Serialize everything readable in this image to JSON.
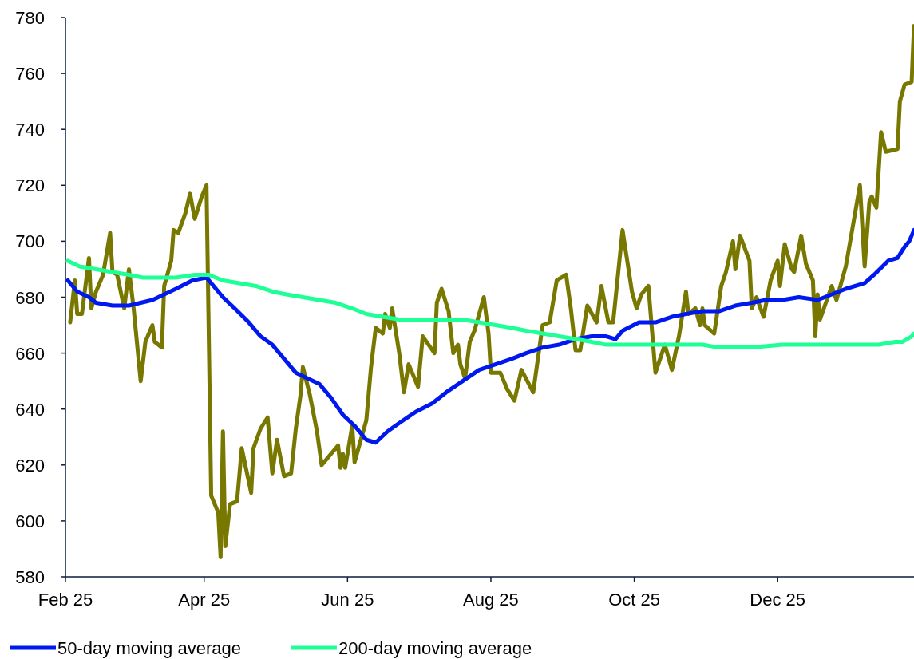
{
  "chart_data": {
    "type": "line",
    "xlim": [
      "2025-02-01",
      "2026-01-28"
    ],
    "xticks": [
      {
        "value": "2025-02-01",
        "label": "Feb 25"
      },
      {
        "value": "2025-04-01",
        "label": "Apr 25"
      },
      {
        "value": "2025-06-01",
        "label": "Jun 25"
      },
      {
        "value": "2025-08-01",
        "label": "Aug 25"
      },
      {
        "value": "2025-10-01",
        "label": "Oct 25"
      },
      {
        "value": "2025-12-01",
        "label": "Dec 25"
      }
    ],
    "ylim": [
      580,
      780
    ],
    "yticks": [
      580,
      600,
      620,
      640,
      660,
      680,
      700,
      720,
      740,
      760,
      780
    ],
    "grid": false,
    "legend": "bottom",
    "line_style": "solid",
    "marker": "none",
    "series": [
      {
        "color": "#787800",
        "x": [
          "2025-02-03",
          "2025-02-05",
          "2025-02-06",
          "2025-02-08",
          "2025-02-11",
          "2025-02-12",
          "2025-02-14",
          "2025-02-17",
          "2025-02-20",
          "2025-02-21",
          "2025-02-23",
          "2025-02-26",
          "2025-02-28",
          "2025-03-02",
          "2025-03-05",
          "2025-03-07",
          "2025-03-10",
          "2025-03-11",
          "2025-03-14",
          "2025-03-15",
          "2025-03-18",
          "2025-03-19",
          "2025-03-21",
          "2025-03-24",
          "2025-03-26",
          "2025-03-28",
          "2025-03-31",
          "2025-04-02",
          "2025-04-04",
          "2025-04-07",
          "2025-04-08",
          "2025-04-09",
          "2025-04-10",
          "2025-04-12",
          "2025-04-15",
          "2025-04-17",
          "2025-04-21",
          "2025-04-22",
          "2025-04-25",
          "2025-04-28",
          "2025-04-30",
          "2025-05-02",
          "2025-05-05",
          "2025-05-08",
          "2025-05-10",
          "2025-05-12",
          "2025-05-13",
          "2025-05-16",
          "2025-05-19",
          "2025-05-21",
          "2025-05-28",
          "2025-05-29",
          "2025-05-30",
          "2025-05-31",
          "2025-06-03",
          "2025-06-04",
          "2025-06-09",
          "2025-06-11",
          "2025-06-13",
          "2025-06-16",
          "2025-06-17",
          "2025-06-19",
          "2025-06-20",
          "2025-06-23",
          "2025-06-25",
          "2025-06-27",
          "2025-07-01",
          "2025-07-03",
          "2025-07-08",
          "2025-07-09",
          "2025-07-11",
          "2025-07-14",
          "2025-07-16",
          "2025-07-18",
          "2025-07-19",
          "2025-07-21",
          "2025-07-23",
          "2025-07-25",
          "2025-07-29",
          "2025-07-31",
          "2025-08-01",
          "2025-08-05",
          "2025-08-08",
          "2025-08-11",
          "2025-08-14",
          "2025-08-19",
          "2025-08-23",
          "2025-08-26",
          "2025-08-29",
          "2025-09-02",
          "2025-09-04",
          "2025-09-06",
          "2025-09-08",
          "2025-09-11",
          "2025-09-15",
          "2025-09-17",
          "2025-09-20",
          "2025-09-22",
          "2025-09-26",
          "2025-09-30",
          "2025-10-02",
          "2025-10-04",
          "2025-10-07",
          "2025-10-10",
          "2025-10-14",
          "2025-10-17",
          "2025-10-20",
          "2025-10-23",
          "2025-10-24",
          "2025-10-27",
          "2025-10-29",
          "2025-10-30",
          "2025-10-31",
          "2025-11-04",
          "2025-11-07",
          "2025-11-09",
          "2025-11-12",
          "2025-11-13",
          "2025-11-15",
          "2025-11-19",
          "2025-11-20",
          "2025-11-22",
          "2025-11-25",
          "2025-11-28",
          "2025-12-01",
          "2025-12-02",
          "2025-12-04",
          "2025-12-07",
          "2025-12-08",
          "2025-12-11",
          "2025-12-13",
          "2025-12-16",
          "2025-12-17",
          "2025-12-18",
          "2025-12-19",
          "2025-12-24",
          "2025-12-26",
          "2025-12-30",
          "2026-01-05",
          "2026-01-07",
          "2026-01-09",
          "2026-01-10",
          "2026-01-12",
          "2026-01-14",
          "2026-01-16",
          "2026-01-21",
          "2026-01-22",
          "2026-01-23",
          "2026-01-24",
          "2026-01-27",
          "2026-01-28"
        ],
        "values": [
          671,
          686,
          674,
          674,
          694,
          676,
          682,
          688,
          703,
          689,
          688,
          676,
          690,
          676,
          650,
          664,
          670,
          664,
          662,
          684,
          693,
          704,
          703,
          710,
          717,
          708,
          716,
          720,
          609,
          603,
          587,
          632,
          591,
          606,
          607,
          626,
          610,
          626,
          633,
          637,
          617,
          629,
          616,
          617,
          633,
          645,
          655,
          645,
          632,
          620,
          627,
          619,
          624,
          619,
          634,
          621,
          636,
          655,
          669,
          667,
          674,
          669,
          676,
          660,
          646,
          656,
          648,
          666,
          660,
          678,
          683,
          675,
          660,
          663,
          656,
          651,
          664,
          668,
          680,
          667,
          653,
          653,
          647,
          643,
          654,
          646,
          670,
          671,
          686,
          688,
          676,
          661,
          661,
          677,
          671,
          684,
          671,
          671,
          704,
          682,
          676,
          681,
          684,
          653,
          663,
          654,
          666,
          682,
          674,
          676,
          670,
          676,
          670,
          667,
          684,
          689,
          700,
          690,
          702,
          693,
          676,
          680,
          673,
          686,
          693,
          684,
          699,
          690,
          689,
          702,
          692,
          686,
          666,
          681,
          672,
          684,
          679,
          691,
          720,
          691,
          714,
          716,
          712,
          739,
          732,
          733,
          750,
          753,
          756,
          757,
          777
        ]
      },
      {
        "name": "50-day moving average",
        "color": "#0018f0",
        "x": [
          "2025-02-02",
          "2025-02-06",
          "2025-02-11",
          "2025-02-14",
          "2025-02-21",
          "2025-02-28",
          "2025-03-05",
          "2025-03-10",
          "2025-03-15",
          "2025-03-20",
          "2025-03-27",
          "2025-04-02",
          "2025-04-04",
          "2025-04-09",
          "2025-04-14",
          "2025-04-20",
          "2025-04-25",
          "2025-04-30",
          "2025-05-05",
          "2025-05-10",
          "2025-05-15",
          "2025-05-20",
          "2025-05-25",
          "2025-05-30",
          "2025-06-04",
          "2025-06-09",
          "2025-06-13",
          "2025-06-18",
          "2025-06-23",
          "2025-06-30",
          "2025-07-07",
          "2025-07-13",
          "2025-07-20",
          "2025-07-27",
          "2025-08-03",
          "2025-08-10",
          "2025-08-16",
          "2025-08-23",
          "2025-08-30",
          "2025-09-06",
          "2025-09-13",
          "2025-09-19",
          "2025-09-23",
          "2025-09-26",
          "2025-10-03",
          "2025-10-10",
          "2025-10-17",
          "2025-10-23",
          "2025-10-30",
          "2025-11-06",
          "2025-11-13",
          "2025-11-20",
          "2025-11-26",
          "2025-12-03",
          "2025-12-10",
          "2025-12-18",
          "2025-12-24",
          "2025-12-30",
          "2026-01-07",
          "2026-01-11",
          "2026-01-17",
          "2026-01-21",
          "2026-01-24",
          "2026-01-26",
          "2026-01-28"
        ],
        "values": [
          686,
          682,
          680,
          678,
          677,
          677,
          678,
          679,
          681,
          683,
          686,
          687,
          685,
          680,
          676,
          671,
          666,
          663,
          658,
          653,
          651,
          649,
          644,
          638,
          634,
          629,
          628,
          632,
          635,
          639,
          642,
          646,
          650,
          654,
          656,
          658,
          660,
          662,
          663,
          665,
          666,
          666,
          665,
          668,
          671,
          671,
          673,
          674,
          675,
          675,
          677,
          678,
          679,
          679,
          680,
          679,
          681,
          683,
          685,
          688,
          693,
          694,
          698,
          700,
          704
        ]
      },
      {
        "name": "200-day moving average",
        "color": "#1eff96",
        "x": [
          "2025-02-02",
          "2025-02-07",
          "2025-02-14",
          "2025-02-21",
          "2025-02-28",
          "2025-03-06",
          "2025-03-13",
          "2025-03-20",
          "2025-03-28",
          "2025-04-03",
          "2025-04-09",
          "2025-04-16",
          "2025-04-23",
          "2025-04-30",
          "2025-05-06",
          "2025-05-13",
          "2025-05-20",
          "2025-05-27",
          "2025-06-03",
          "2025-06-09",
          "2025-06-16",
          "2025-06-23",
          "2025-06-30",
          "2025-07-07",
          "2025-07-13",
          "2025-07-20",
          "2025-07-27",
          "2025-08-03",
          "2025-08-10",
          "2025-08-16",
          "2025-08-23",
          "2025-08-30",
          "2025-09-06",
          "2025-09-13",
          "2025-09-19",
          "2025-10-03",
          "2025-10-17",
          "2025-10-30",
          "2025-11-06",
          "2025-11-20",
          "2025-12-03",
          "2025-12-17",
          "2025-12-30",
          "2026-01-13",
          "2026-01-20",
          "2026-01-23",
          "2026-01-27",
          "2026-01-28"
        ],
        "values": [
          693,
          691,
          690,
          689,
          688,
          687,
          687,
          687,
          688,
          688,
          686,
          685,
          684,
          682,
          681,
          680,
          679,
          678,
          676,
          674,
          673,
          672,
          672,
          672,
          672,
          672,
          671,
          670,
          669,
          668,
          667,
          666,
          665,
          664,
          663,
          663,
          663,
          663,
          662,
          662,
          663,
          663,
          663,
          663,
          664,
          664,
          666,
          667
        ]
      }
    ]
  }
}
